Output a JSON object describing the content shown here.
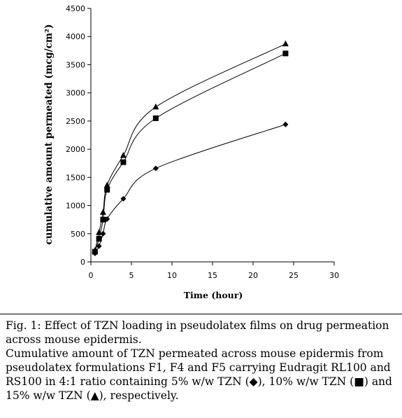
{
  "chart_data": {
    "type": "line",
    "xlabel": "Time (hour)",
    "ylabel": "cumulative amount permeated (mcg/cm²)",
    "xlim": [
      0,
      30
    ],
    "ylim": [
      0,
      4500
    ],
    "x_ticks": [
      "0",
      "5",
      "10",
      "15",
      "20",
      "25",
      "30"
    ],
    "y_ticks": [
      "0",
      "500",
      "1000",
      "1500",
      "2000",
      "2500",
      "3000",
      "3500",
      "4000",
      "4500"
    ],
    "grid": false,
    "series": [
      {
        "marker": "diamond",
        "x": [
          0.5,
          1,
          1.5,
          2,
          4,
          8,
          24
        ],
        "y": [
          150,
          280,
          500,
          760,
          1120,
          1660,
          2440
        ]
      },
      {
        "marker": "square",
        "x": [
          0.5,
          1,
          1.5,
          2,
          4,
          8,
          24
        ],
        "y": [
          180,
          410,
          750,
          1280,
          1770,
          2550,
          3700
        ]
      },
      {
        "marker": "triangle",
        "x": [
          0.5,
          1,
          1.5,
          2,
          4,
          8,
          24
        ],
        "y": [
          200,
          520,
          880,
          1360,
          1890,
          2750,
          3870
        ]
      }
    ]
  },
  "caption": {
    "title": "Fig. 1: Effect of TZN loading in pseudolatex films on drug permeation across mouse epidermis.",
    "description": "Cumulative amount of TZN permeated across mouse epidermis from pseudolatex formulations F1, F4 and F5 carrying Eudragit RL100 and RS100 in 4:1 ratio containing 5% w/w TZN (◆), 10% w/w TZN (■) and 15% w/w TZN (▲), respectively."
  }
}
